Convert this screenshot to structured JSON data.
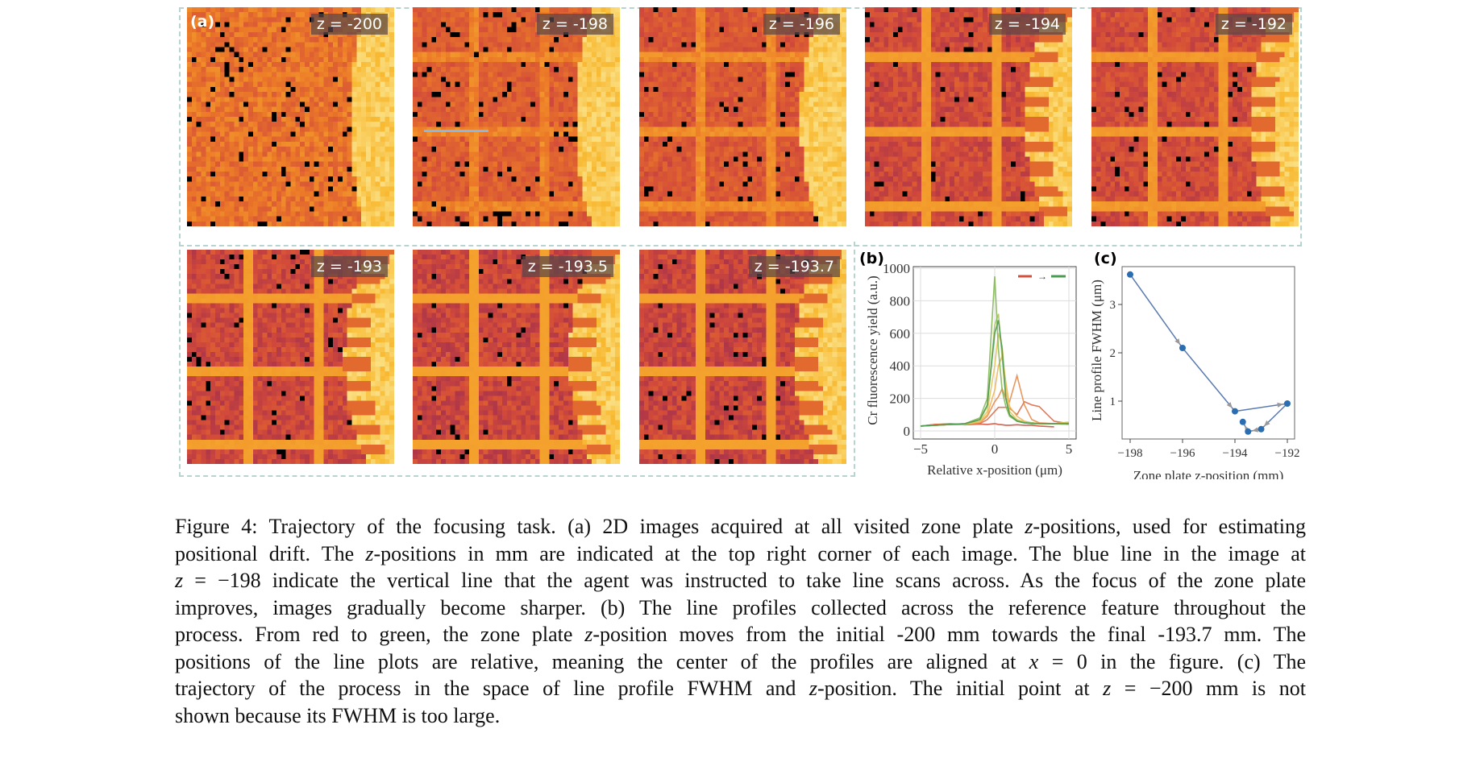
{
  "figure": {
    "panel_a_label": "(a)",
    "panel_b_label": "(b)",
    "panel_c_label": "(c)",
    "images": [
      {
        "label": "z = -200"
      },
      {
        "label": "z = -198"
      },
      {
        "label": "z = -196"
      },
      {
        "label": "z = -194"
      },
      {
        "label": "z = -192"
      },
      {
        "label": "z = -193"
      },
      {
        "label": "z = -193.5"
      },
      {
        "label": "z = -193.7"
      }
    ],
    "scan_line_color": "#8ab8e0"
  },
  "chart_data": [
    {
      "type": "line",
      "xlabel": "Relative x-position (μm)",
      "ylabel": "Cr fluorescence yield (a.u.)",
      "xlim": [
        -5.5,
        5.5
      ],
      "ylim": [
        -50,
        1020
      ],
      "xticks": [
        "-5",
        "0",
        "5"
      ],
      "yticks": [
        "0",
        "200",
        "400",
        "600",
        "800",
        "1000"
      ],
      "grid": true,
      "legend": "top-right: red → green",
      "x": [
        -5,
        -4,
        -3,
        -2,
        -1,
        -0.5,
        0,
        0.25,
        0.5,
        0.75,
        1,
        1.5,
        2,
        2.5,
        3,
        4,
        5
      ],
      "series": [
        {
          "color": "#d2503c",
          "values": [
            30,
            40,
            40,
            38,
            42,
            40,
            45,
            40,
            38,
            35,
            35,
            38,
            35,
            35,
            30,
            25,
            null
          ]
        },
        {
          "color": "#dd6a48",
          "values": [
            30,
            40,
            45,
            38,
            45,
            70,
            120,
            145,
            145,
            145,
            140,
            100,
            180,
            160,
            150,
            60,
            45
          ]
        },
        {
          "color": "#e88c4e",
          "values": [
            30,
            35,
            40,
            40,
            50,
            90,
            180,
            210,
            260,
            200,
            180,
            340,
            160,
            70,
            50,
            45,
            40
          ]
        },
        {
          "color": "#efb456",
          "values": [
            30,
            35,
            40,
            40,
            55,
            100,
            250,
            400,
            460,
            300,
            150,
            90,
            60,
            50,
            45,
            45,
            40
          ]
        },
        {
          "color": "#e6c45e",
          "values": [
            30,
            35,
            40,
            40,
            60,
            120,
            400,
            600,
            520,
            260,
            120,
            70,
            55,
            50,
            45,
            45,
            55
          ]
        },
        {
          "color": "#b4c45e",
          "values": [
            30,
            35,
            40,
            40,
            70,
            150,
            650,
            720,
            450,
            200,
            100,
            65,
            55,
            50,
            45,
            45,
            50
          ]
        },
        {
          "color": "#86b858",
          "values": [
            30,
            35,
            40,
            45,
            80,
            200,
            950,
            500,
            250,
            150,
            90,
            60,
            50,
            50,
            45,
            45,
            45
          ]
        },
        {
          "color": "#4a9c52",
          "values": [
            30,
            35,
            40,
            45,
            70,
            160,
            600,
            680,
            500,
            200,
            100,
            60,
            50,
            45,
            45,
            45,
            45
          ]
        }
      ]
    },
    {
      "type": "line",
      "xlabel": "Zone plate z-position (mm)",
      "ylabel": "Line profile FWHM (μm)",
      "xlim": [
        -198.3,
        -191.7
      ],
      "ylim": [
        0.2,
        3.8
      ],
      "xticks": [
        "-198",
        "-196",
        "-194",
        "-192"
      ],
      "yticks": [
        "1",
        "2",
        "3"
      ],
      "grid": false,
      "line_color": "#5a7ab0",
      "point_color": "#2a6db0",
      "arrow_color": "#999999",
      "points": [
        {
          "z": -198,
          "fwhm": 3.62
        },
        {
          "z": -196,
          "fwhm": 2.1
        },
        {
          "z": -194,
          "fwhm": 0.79
        },
        {
          "z": -192,
          "fwhm": 0.95
        },
        {
          "z": -193,
          "fwhm": 0.42
        },
        {
          "z": -193.5,
          "fwhm": 0.37
        },
        {
          "z": -193.7,
          "fwhm": 0.57
        }
      ]
    }
  ],
  "caption": {
    "lines": [
      [
        {
          "t": "Figure 4: Trajectory of the focusing task. (a) 2D images acquired at all visited zone plate "
        },
        {
          "t": "z",
          "i": true
        },
        {
          "t": "-positions, used for estimating"
        }
      ],
      [
        {
          "t": "positional drift. The "
        },
        {
          "t": "z",
          "i": true
        },
        {
          "t": "-positions in mm are indicated at the top right corner of each image. The blue line in the image at"
        }
      ],
      [
        {
          "t": "z",
          "i": true
        },
        {
          "t": " = −198 indicate the vertical line that the agent was instructed to take line scans across. As the focus of the zone plate"
        }
      ],
      [
        {
          "t": "improves, images gradually become sharper. (b) The line profiles collected across the reference feature throughout the"
        }
      ],
      [
        {
          "t": "process. From red to green, the zone plate "
        },
        {
          "t": "z",
          "i": true
        },
        {
          "t": "-position moves from the initial -200 mm towards the final -193.7 mm. The"
        }
      ],
      [
        {
          "t": "positions of the line plots are relative, meaning the center of the profiles are aligned at "
        },
        {
          "t": "x",
          "i": true
        },
        {
          "t": " = 0 in the figure. (c) The"
        }
      ],
      [
        {
          "t": "trajectory of the process in the space of line profile FWHM and "
        },
        {
          "t": "z",
          "i": true
        },
        {
          "t": "-position. The initial point at "
        },
        {
          "t": "z",
          "i": true
        },
        {
          "t": " = −200 mm is not"
        }
      ],
      [
        {
          "t": "shown because its FWHM is too large."
        }
      ]
    ]
  }
}
